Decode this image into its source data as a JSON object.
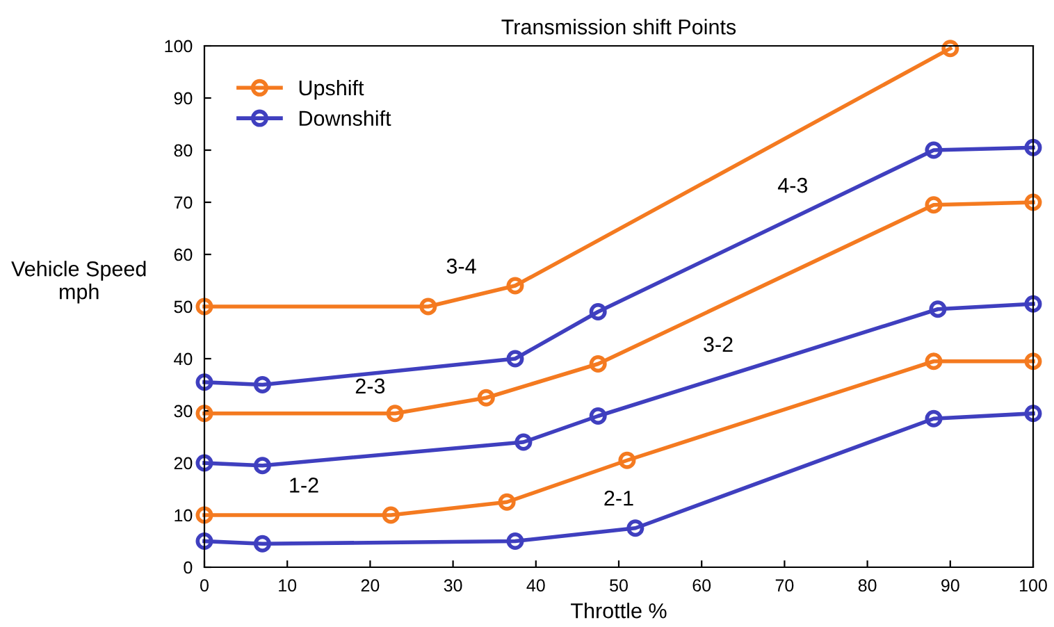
{
  "chart_data": {
    "type": "line",
    "title": "Transmission shift Points",
    "xlabel": "Throttle %",
    "ylabel": "Vehicle Speed\nmph",
    "xlim": [
      0,
      100
    ],
    "ylim": [
      0,
      100
    ],
    "xticks": [
      0,
      10,
      20,
      30,
      40,
      50,
      60,
      70,
      80,
      90,
      100
    ],
    "yticks": [
      0,
      10,
      20,
      30,
      40,
      50,
      60,
      70,
      80,
      90,
      100
    ],
    "grid": false,
    "legend": "top left",
    "marker": "circle",
    "line_style": "solid",
    "series": [
      {
        "name": "Upshift",
        "color": "#f47a20",
        "x": [
          0,
          22.5,
          36.5,
          51,
          88,
          100
        ],
        "values": [
          10,
          10,
          12.5,
          20.5,
          39.5,
          39.5
        ]
      },
      {
        "name": "Downshift",
        "color": "#3f3fbf",
        "x": [
          0,
          7,
          37.5,
          52,
          88,
          100
        ],
        "values": [
          5,
          4.5,
          5,
          7.5,
          28.5,
          29.5
        ]
      },
      {
        "color": "#f47a20",
        "x": [
          0,
          23,
          34,
          47.5,
          88,
          100
        ],
        "values": [
          29.5,
          29.5,
          32.5,
          39,
          69.5,
          70
        ]
      },
      {
        "color": "#3f3fbf",
        "x": [
          0,
          7,
          38.5,
          47.5,
          88.5,
          100
        ],
        "values": [
          20,
          19.5,
          24,
          29,
          49.5,
          50.5
        ]
      },
      {
        "color": "#f47a20",
        "x": [
          0,
          27,
          37.5,
          90
        ],
        "values": [
          50,
          50,
          54,
          99.5
        ]
      },
      {
        "color": "#3f3fbf",
        "x": [
          0,
          7,
          37.5,
          47.5,
          88,
          100
        ],
        "values": [
          35.5,
          35,
          40,
          49,
          80,
          80.5
        ]
      }
    ],
    "annotations": [
      "1-2",
      "2-1",
      "2-3",
      "3-2",
      "3-4",
      "4-3"
    ]
  }
}
